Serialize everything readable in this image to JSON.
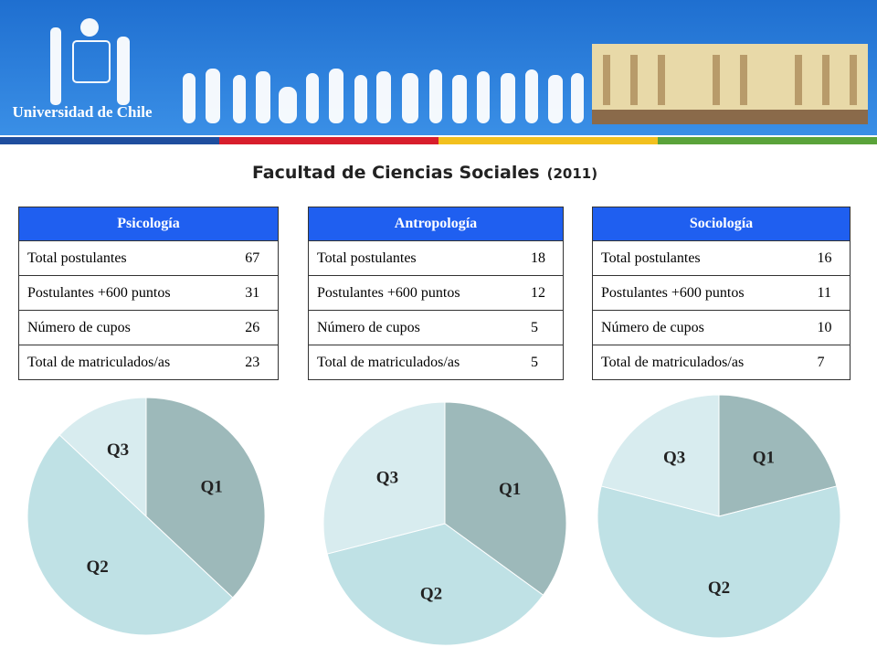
{
  "header": {
    "university": "Universidad de Chile"
  },
  "title": {
    "main": "Facultad de Ciencias Sociales",
    "year": "(2011)"
  },
  "tables": [
    {
      "title": "Psicología",
      "rows": [
        [
          "Total postulantes",
          "67"
        ],
        [
          "Postulantes +600 puntos",
          "31"
        ],
        [
          "Número de cupos",
          "26"
        ],
        [
          "Total de matriculados/as",
          "23"
        ]
      ]
    },
    {
      "title": "Antropología",
      "rows": [
        [
          "Total postulantes",
          "18"
        ],
        [
          "Postulantes +600 puntos",
          "12"
        ],
        [
          "Número de cupos",
          "5"
        ],
        [
          "Total de matriculados/as",
          "5"
        ]
      ]
    },
    {
      "title": "Sociología",
      "rows": [
        [
          "Total postulantes",
          "16"
        ],
        [
          "Postulantes +600 puntos",
          "11"
        ],
        [
          "Número de cupos",
          "10"
        ],
        [
          "Total de matriculados/as",
          "7"
        ]
      ]
    }
  ],
  "chart_data": [
    {
      "type": "pie",
      "categories": [
        "Q1",
        "Q2",
        "Q3"
      ],
      "values": [
        37,
        50,
        13
      ],
      "colors": [
        "#9db9ba",
        "#bfe1e5",
        "#d8ecef"
      ]
    },
    {
      "type": "pie",
      "categories": [
        "Q1",
        "Q2",
        "Q3"
      ],
      "values": [
        35,
        36,
        29
      ],
      "colors": [
        "#9db9ba",
        "#bfe1e5",
        "#d8ecef"
      ]
    },
    {
      "type": "pie",
      "categories": [
        "Q1",
        "Q2",
        "Q3"
      ],
      "values": [
        21,
        58,
        21
      ],
      "colors": [
        "#9db9ba",
        "#bfe1e5",
        "#d8ecef"
      ]
    }
  ]
}
